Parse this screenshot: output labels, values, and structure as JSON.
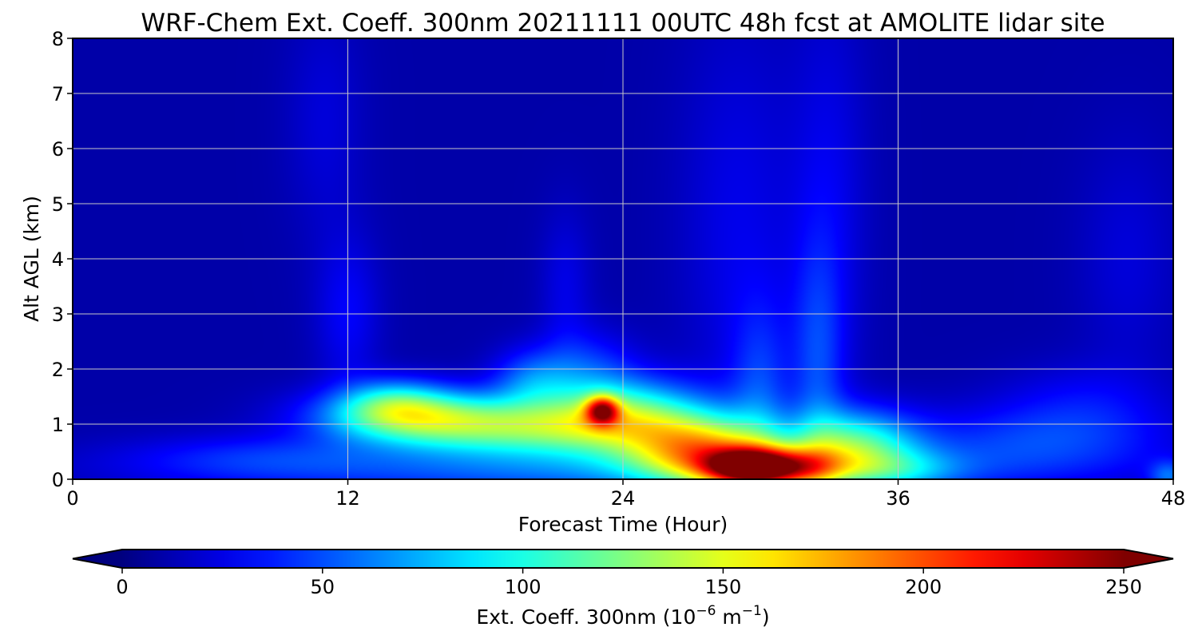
{
  "chart_data": {
    "type": "heatmap",
    "title": "WRF-Chem Ext. Coeff. 300nm  20211111 00UTC 48h fcst at AMOLITE lidar site",
    "xlabel": "Forecast Time (Hour)",
    "ylabel": "Alt AGL (km)",
    "xlim": [
      0,
      48
    ],
    "ylim": [
      0,
      8
    ],
    "x_ticks": [
      "0",
      "12",
      "24",
      "36",
      "48"
    ],
    "y_ticks": [
      "0",
      "1",
      "2",
      "3",
      "4",
      "5",
      "6",
      "7",
      "8"
    ],
    "grid": true,
    "colormap": "jet",
    "colorbar": {
      "label_main": "Ext. Coeff. 300nm  (10",
      "label_exp1": "−6",
      "label_mid": " m",
      "label_exp2": "−1",
      "label_end": ")",
      "range": [
        0,
        250
      ],
      "extend": "both",
      "ticks": [
        "0",
        "50",
        "100",
        "150",
        "200",
        "250"
      ],
      "placement": "bottom"
    },
    "background_value": 10,
    "features": [
      {
        "t": 24.0,
        "z": 0.15,
        "st": 12.0,
        "sz": 0.35,
        "v": 45
      },
      {
        "t": 8.0,
        "z": 0.4,
        "st": 4.0,
        "sz": 0.3,
        "v": 22
      },
      {
        "t": 15.0,
        "z": 1.15,
        "st": 3.0,
        "sz": 0.35,
        "v": 95
      },
      {
        "t": 20.0,
        "z": 0.9,
        "st": 4.0,
        "sz": 0.35,
        "v": 85
      },
      {
        "t": 14.0,
        "z": 1.4,
        "st": 1.5,
        "sz": 0.3,
        "v": 45
      },
      {
        "t": 20.0,
        "z": 1.8,
        "st": 1.2,
        "sz": 0.4,
        "v": 40
      },
      {
        "t": 24.0,
        "z": 1.2,
        "st": 2.5,
        "sz": 0.45,
        "v": 90
      },
      {
        "t": 23.1,
        "z": 1.25,
        "st": 0.5,
        "sz": 0.18,
        "v": 120
      },
      {
        "t": 22.5,
        "z": 2.0,
        "st": 1.5,
        "sz": 0.5,
        "v": 30
      },
      {
        "t": 28.0,
        "z": 0.5,
        "st": 2.0,
        "sz": 0.45,
        "v": 105
      },
      {
        "t": 29.2,
        "z": 0.22,
        "st": 1.2,
        "sz": 0.22,
        "v": 110
      },
      {
        "t": 31.0,
        "z": 0.2,
        "st": 1.6,
        "sz": 0.25,
        "v": 130
      },
      {
        "t": 34.0,
        "z": 0.6,
        "st": 2.0,
        "sz": 0.45,
        "v": 95
      },
      {
        "t": 26.0,
        "z": 0.55,
        "st": 2.0,
        "sz": 0.4,
        "v": 45
      },
      {
        "t": 36.0,
        "z": 0.15,
        "st": 2.0,
        "sz": 0.25,
        "v": 35
      },
      {
        "t": 30.0,
        "z": 1.5,
        "st": 0.9,
        "sz": 1.2,
        "v": 30
      },
      {
        "t": 32.5,
        "z": 2.0,
        "st": 0.8,
        "sz": 1.6,
        "v": 30
      },
      {
        "t": 29.0,
        "z": 4.5,
        "st": 1.8,
        "sz": 2.8,
        "v": 16
      },
      {
        "t": 33.0,
        "z": 5.0,
        "st": 1.2,
        "sz": 2.8,
        "v": 16
      },
      {
        "t": 12.0,
        "z": 3.0,
        "st": 1.0,
        "sz": 1.0,
        "v": 20
      },
      {
        "t": 11.0,
        "z": 6.5,
        "st": 1.2,
        "sz": 1.5,
        "v": 12
      },
      {
        "t": 21.5,
        "z": 3.5,
        "st": 0.8,
        "sz": 1.0,
        "v": 15
      },
      {
        "t": 42.0,
        "z": 0.7,
        "st": 4.0,
        "sz": 0.45,
        "v": 32
      },
      {
        "t": 44.0,
        "z": 1.4,
        "st": 2.5,
        "sz": 0.5,
        "v": 18
      },
      {
        "t": 46.0,
        "z": 4.0,
        "st": 1.5,
        "sz": 1.5,
        "v": 12
      },
      {
        "t": 47.8,
        "z": 0.05,
        "st": 0.6,
        "sz": 0.2,
        "v": 40
      }
    ]
  }
}
